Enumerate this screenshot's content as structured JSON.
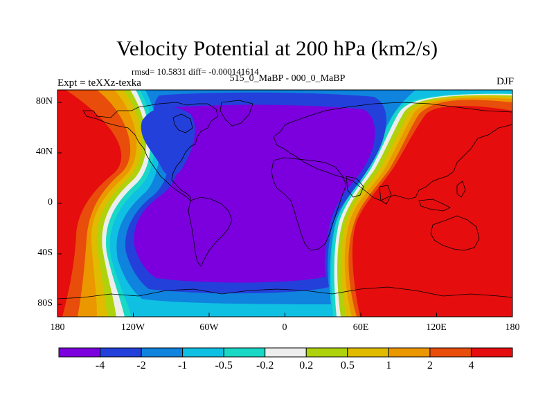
{
  "plot": {
    "title": "Velocity Potential at 200 hPa (km2/s)",
    "stats": "rmsd= 10.5831 diff= -0.000141614",
    "expt": "Expt = teXXz-texka",
    "cases": "515_0_MaBP - 000_0_MaBP",
    "season": "DJF"
  },
  "chart_data": {
    "type": "heatmap",
    "title": "Velocity Potential at 200 hPa (km2/s)",
    "x_ticks": [
      "180",
      "120W",
      "60W",
      "0",
      "60E",
      "120E",
      "180"
    ],
    "y_ticks": [
      "80N",
      "40N",
      "0",
      "40S",
      "80S"
    ],
    "lon_range": [
      -180,
      180
    ],
    "lat_range": [
      -90,
      90
    ],
    "colorbar_labels": [
      "-4",
      "-2",
      "-1",
      "-0.5",
      "-0.2",
      "0.2",
      "0.5",
      "1",
      "2",
      "4"
    ],
    "levels": [
      {
        "name": "< -4",
        "color": "#7b00dd"
      },
      {
        "name": "-4 to -2",
        "color": "#2440da"
      },
      {
        "name": "-2 to -1",
        "color": "#0f83dd"
      },
      {
        "name": "-1 to -0.5",
        "color": "#0fc0e3"
      },
      {
        "name": "-0.5 to -0.2",
        "color": "#19d8c6"
      },
      {
        "name": "-0.2 to 0.2",
        "color": "#ededed"
      },
      {
        "name": "0.2 to 0.5",
        "color": "#aed20c"
      },
      {
        "name": "0.5 to 1",
        "color": "#e0bb00"
      },
      {
        "name": "1 to 2",
        "color": "#eb9700"
      },
      {
        "name": "2 to 4",
        "color": "#e84d0b"
      },
      {
        "name": "> 4",
        "color": "#e50d0d"
      }
    ],
    "description_values": {
      "negative_center": "Western hemisphere / Atlantic-Africa (lon -140 to 50)",
      "positive_center": "Eastern hemisphere / Pacific (lon 60 to 180 and -180 to -140)"
    }
  }
}
